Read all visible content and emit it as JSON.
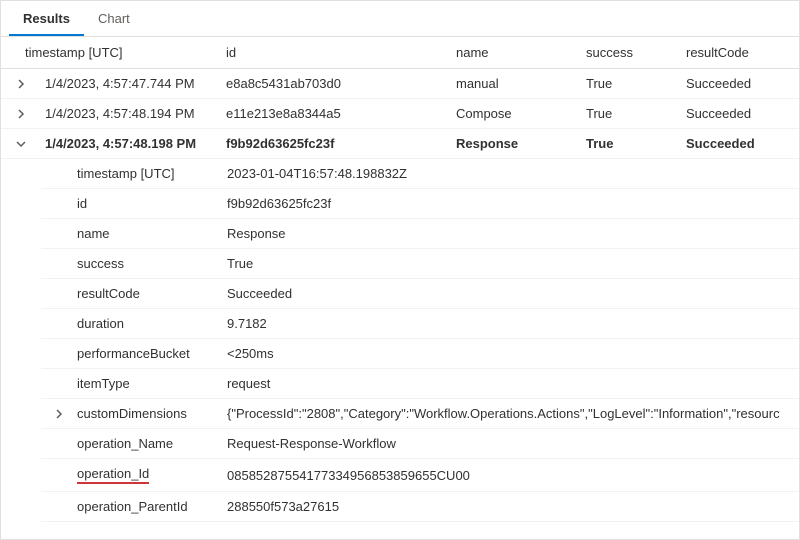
{
  "tabs": {
    "results": "Results",
    "chart": "Chart"
  },
  "columns": {
    "timestamp": "timestamp [UTC]",
    "id": "id",
    "name": "name",
    "success": "success",
    "resultCode": "resultCode"
  },
  "rows": [
    {
      "timestamp": "1/4/2023, 4:57:47.744 PM",
      "id": "e8a8c5431ab703d0",
      "name": "manual",
      "success": "True",
      "resultCode": "Succeeded",
      "expanded": false
    },
    {
      "timestamp": "1/4/2023, 4:57:48.194 PM",
      "id": "e11e213e8a8344a5",
      "name": "Compose",
      "success": "True",
      "resultCode": "Succeeded",
      "expanded": false
    },
    {
      "timestamp": "1/4/2023, 4:57:48.198 PM",
      "id": "f9b92d63625fc23f",
      "name": "Response",
      "success": "True",
      "resultCode": "Succeeded",
      "expanded": true
    }
  ],
  "details": [
    {
      "key": "timestamp [UTC]",
      "value": "2023-01-04T16:57:48.198832Z",
      "expandable": false
    },
    {
      "key": "id",
      "value": "f9b92d63625fc23f",
      "expandable": false
    },
    {
      "key": "name",
      "value": "Response",
      "expandable": false
    },
    {
      "key": "success",
      "value": "True",
      "expandable": false
    },
    {
      "key": "resultCode",
      "value": "Succeeded",
      "expandable": false
    },
    {
      "key": "duration",
      "value": "9.7182",
      "expandable": false
    },
    {
      "key": "performanceBucket",
      "value": "<250ms",
      "expandable": false
    },
    {
      "key": "itemType",
      "value": "request",
      "expandable": false
    },
    {
      "key": "customDimensions",
      "value": "{\"ProcessId\":\"2808\",\"Category\":\"Workflow.Operations.Actions\",\"LogLevel\":\"Information\",\"resourc",
      "expandable": true
    },
    {
      "key": "operation_Name",
      "value": "Request-Response-Workflow",
      "expandable": false
    },
    {
      "key": "operation_Id",
      "value": "08585287554177334956853859655CU00",
      "expandable": false,
      "highlight": true
    },
    {
      "key": "operation_ParentId",
      "value": "288550f573a27615",
      "expandable": false
    }
  ],
  "colors": {
    "accent": "#0078d4",
    "highlight": "#d13438",
    "border": "#e1dfdd",
    "rowBorder": "#f3f2f1",
    "text": "#323130"
  }
}
